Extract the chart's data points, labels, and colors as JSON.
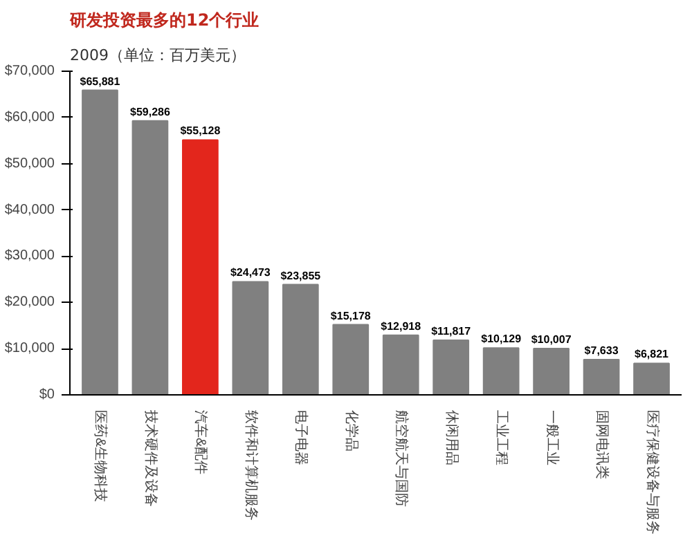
{
  "chart_data": {
    "type": "bar",
    "title": "研发投资最多的12个行业",
    "subtitle": "2009（单位：百万美元）",
    "categories": [
      "医药&生物科技",
      "技术硬件及设备",
      "汽车&配件",
      "软件和计算机服务",
      "电子电器",
      "化学品",
      "航空航天与国防",
      "休闲用品",
      "工业工程",
      "一般工业",
      "固网电讯类",
      "医疗保健设备与服务"
    ],
    "values": [
      65881,
      59286,
      55128,
      24473,
      23855,
      15178,
      12918,
      11817,
      10129,
      10007,
      7633,
      6821
    ],
    "colors": [
      "#808080",
      "#808080",
      "#e3261c",
      "#808080",
      "#808080",
      "#808080",
      "#808080",
      "#808080",
      "#808080",
      "#808080",
      "#808080",
      "#808080"
    ],
    "value_labels": [
      "$65,881",
      "$59,286",
      "$55,128",
      "$24,473",
      "$23,855",
      "$15,178",
      "$12,918",
      "$11,817",
      "$10,129",
      "$10,007",
      "$7,633",
      "$6,821"
    ],
    "ylim": [
      0,
      70000
    ],
    "yticks": [
      {
        "value": 0,
        "label": "$0"
      },
      {
        "value": 10000,
        "label": "$10,000"
      },
      {
        "value": 20000,
        "label": "$20,000"
      },
      {
        "value": 30000,
        "label": "$30,000"
      },
      {
        "value": 40000,
        "label": "$40,000"
      },
      {
        "value": 50000,
        "label": "$50,000"
      },
      {
        "value": 60000,
        "label": "$60,000"
      },
      {
        "value": 70000,
        "label": "$70,000"
      }
    ],
    "grid": false
  }
}
